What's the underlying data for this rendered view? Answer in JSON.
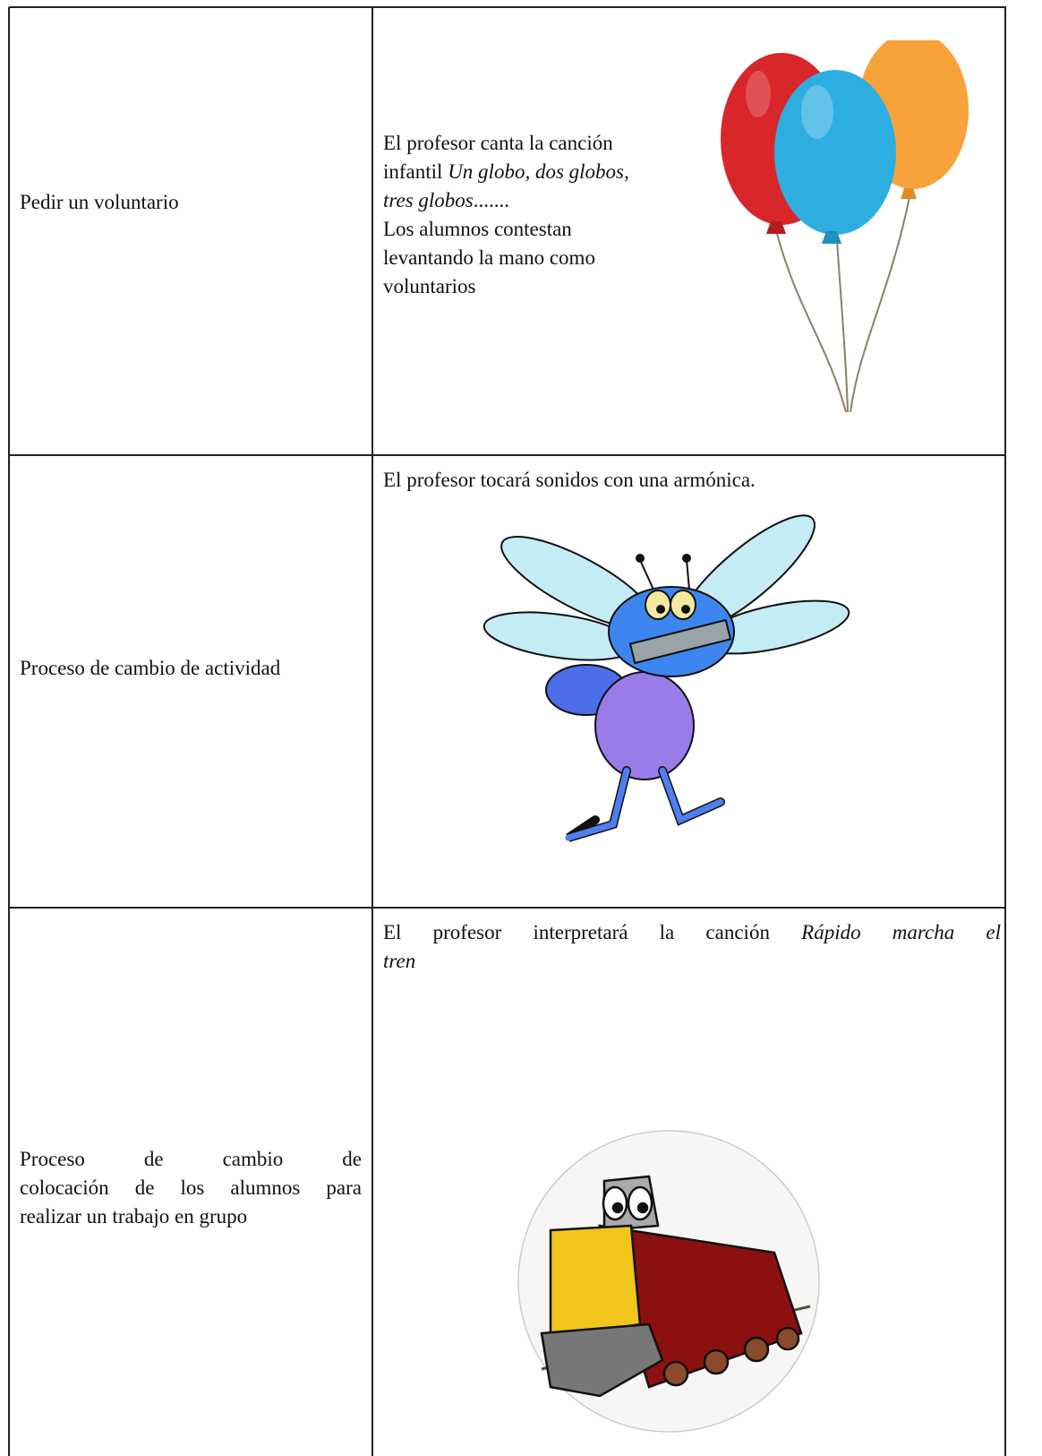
{
  "table": {
    "rows": [
      {
        "label": [
          "Pedir un voluntario"
        ],
        "description": [
          "El profesor canta la canción",
          "infantil",
          "Un globo, dos globos,",
          "tres globos",
          ".......",
          "Los alumnos contestan",
          "levantando la mano como",
          "voluntarios"
        ]
      },
      {
        "label": [
          "Proceso de cambio de actividad"
        ],
        "description": [
          "El profesor tocará sonidos con una armónica."
        ]
      },
      {
        "label": [
          "Proceso de cambio de",
          "colocación de los alumnos para",
          "realizar un trabajo en grupo"
        ],
        "description": [
          "El profesor interpretará la canción",
          "Rápido marcha el",
          "tren"
        ]
      }
    ]
  }
}
